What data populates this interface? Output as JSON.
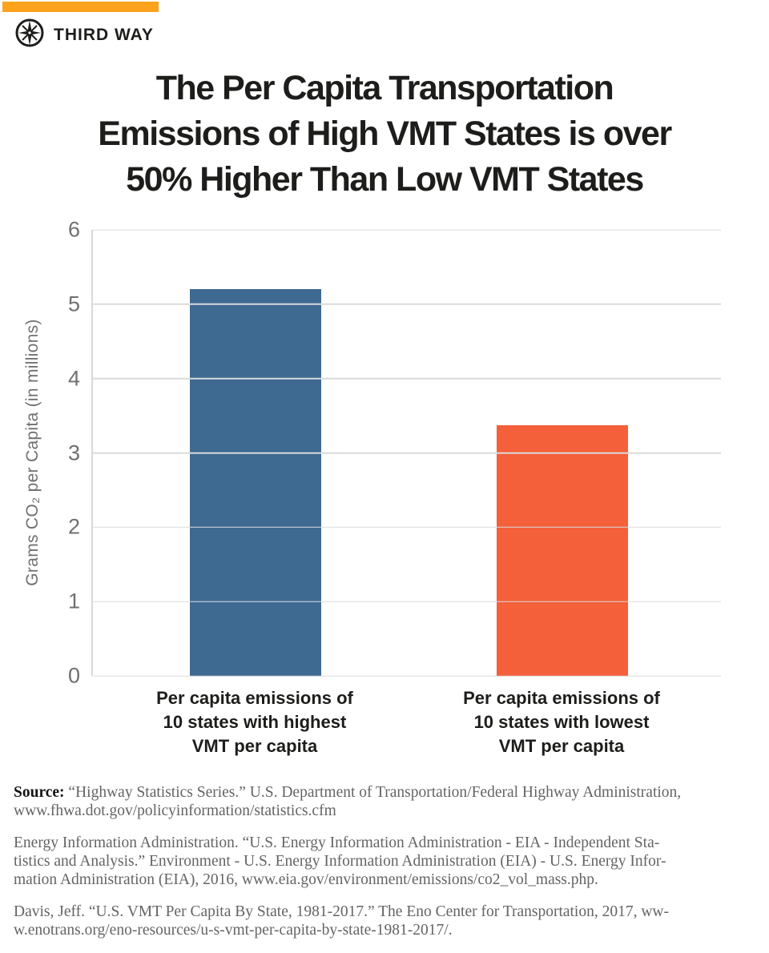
{
  "brand": {
    "name": "THIRD WAY",
    "banner_color": "#FCA31E",
    "logo_icon": "compass-star-icon"
  },
  "title": {
    "lines": [
      "The Per Capita Transportation",
      "Emissions of High VMT States is over",
      "50% Higher Than Low VMT States"
    ]
  },
  "chart_data": {
    "type": "bar",
    "title": "The Per Capita Transportation Emissions of High VMT States is over 50% Higher Than Low VMT States",
    "categories": [
      "Per capita emissions of 10 states with highest VMT per capita",
      "Per capita emissions of 10 states with lowest VMT per capita"
    ],
    "values": [
      5.2,
      3.37
    ],
    "bar_colors": [
      "#3E6A92",
      "#F4603A"
    ],
    "xlabel": "",
    "ylabel": "Grams CO₂ per Capita (in millions)",
    "ylim": [
      0,
      6
    ],
    "yticks": [
      0,
      1,
      2,
      3,
      4,
      5,
      6
    ],
    "grid": true,
    "legend": "none"
  },
  "bar_labels": [
    {
      "lines": [
        "Per capita emissions of",
        "10 states with highest",
        "VMT per capita"
      ]
    },
    {
      "lines": [
        "Per capita emissions of",
        "10 states with lowest",
        "VMT per capita"
      ]
    }
  ],
  "source": {
    "label": "Source:",
    "paragraphs": [
      {
        "lines": [
          "“Highway Statistics Series.” U.S. Department of Transportation/Federal Highway Administration,",
          "www.fhwa.dot.gov/policyinformation/statistics.cfm"
        ]
      },
      {
        "lines": [
          "Energy Information Administration. “U.S. Energy Information Administration - EIA - Independent Sta-",
          "tistics and Analysis.” Environment - U.S. Energy Information Administration (EIA) - U.S. Energy Infor-",
          "mation Administration (EIA), 2016, www.eia.gov/environment/emissions/co2_vol_mass.php."
        ]
      },
      {
        "lines": [
          "Davis, Jeff. “U.S. VMT Per Capita By State, 1981-2017.” The Eno Center for Transportation, 2017, ww-",
          "w.enotrans.org/eno-resources/u-s-vmt-per-capita-by-state-1981-2017/."
        ]
      }
    ]
  }
}
